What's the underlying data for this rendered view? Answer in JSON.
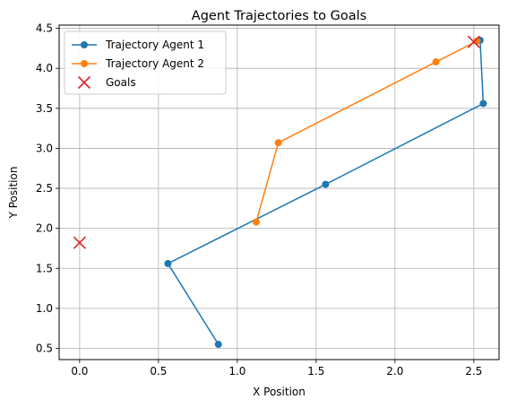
{
  "chart_data": {
    "type": "line",
    "title": "Agent Trajectories to Goals",
    "xlabel": "X Position",
    "ylabel": "Y Position",
    "xlim": [
      -0.13,
      2.66
    ],
    "ylim": [
      0.36,
      4.54
    ],
    "grid": true,
    "legend_position": "top-left",
    "xticks": [
      0.0,
      0.5,
      1.0,
      1.5,
      2.0,
      2.5
    ],
    "xtick_labels": [
      "0.0",
      "0.5",
      "1.0",
      "1.5",
      "2.0",
      "2.5"
    ],
    "yticks": [
      0.5,
      1.0,
      1.5,
      2.0,
      2.5,
      3.0,
      3.5,
      4.0,
      4.5
    ],
    "ytick_labels": [
      "0.5",
      "1.0",
      "1.5",
      "2.0",
      "2.5",
      "3.0",
      "3.5",
      "4.0",
      "4.5"
    ],
    "series": [
      {
        "name": "Trajectory Agent 1",
        "color": "#1f77b4",
        "marker": "circle",
        "x": [
          0.88,
          0.56,
          1.56,
          2.56,
          2.54
        ],
        "y": [
          0.55,
          1.56,
          2.55,
          3.56,
          4.35
        ]
      },
      {
        "name": "Trajectory Agent 2",
        "color": "#ff7f0e",
        "marker": "circle",
        "x": [
          1.12,
          1.26,
          2.26,
          2.52
        ],
        "y": [
          2.08,
          3.07,
          4.08,
          4.34
        ]
      }
    ],
    "goals": {
      "name": "Goals",
      "color": "#d62728",
      "marker": "x",
      "x": [
        0.0,
        2.5
      ],
      "y": [
        1.82,
        4.33
      ]
    }
  }
}
